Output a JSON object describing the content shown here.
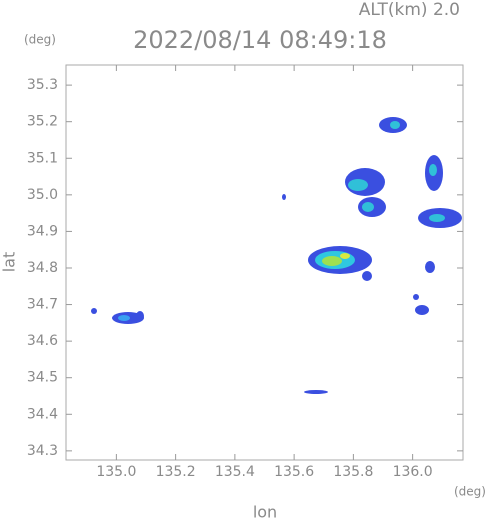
{
  "chart_data": {
    "type": "map",
    "title": "2022/08/14 08:49:18",
    "subtitle": "ALT(km) 2.0",
    "xlabel": "lon",
    "ylabel": "lat",
    "xunit": "(deg)",
    "yunit": "(deg)",
    "xlim": [
      134.83,
      136.17
    ],
    "ylim": [
      34.275,
      35.355
    ],
    "xticks": [
      {
        "value": 135,
        "label": "135.0"
      },
      135.2,
      135.4,
      135.6,
      135.8,
      {
        "value": 136,
        "label": "136.0"
      }
    ],
    "yticks": [
      34.3,
      34.4,
      34.5,
      34.6,
      34.7,
      34.8,
      34.9,
      {
        "value": 35,
        "label": "35.0"
      },
      35.1,
      35.2,
      35.3
    ]
  }
}
